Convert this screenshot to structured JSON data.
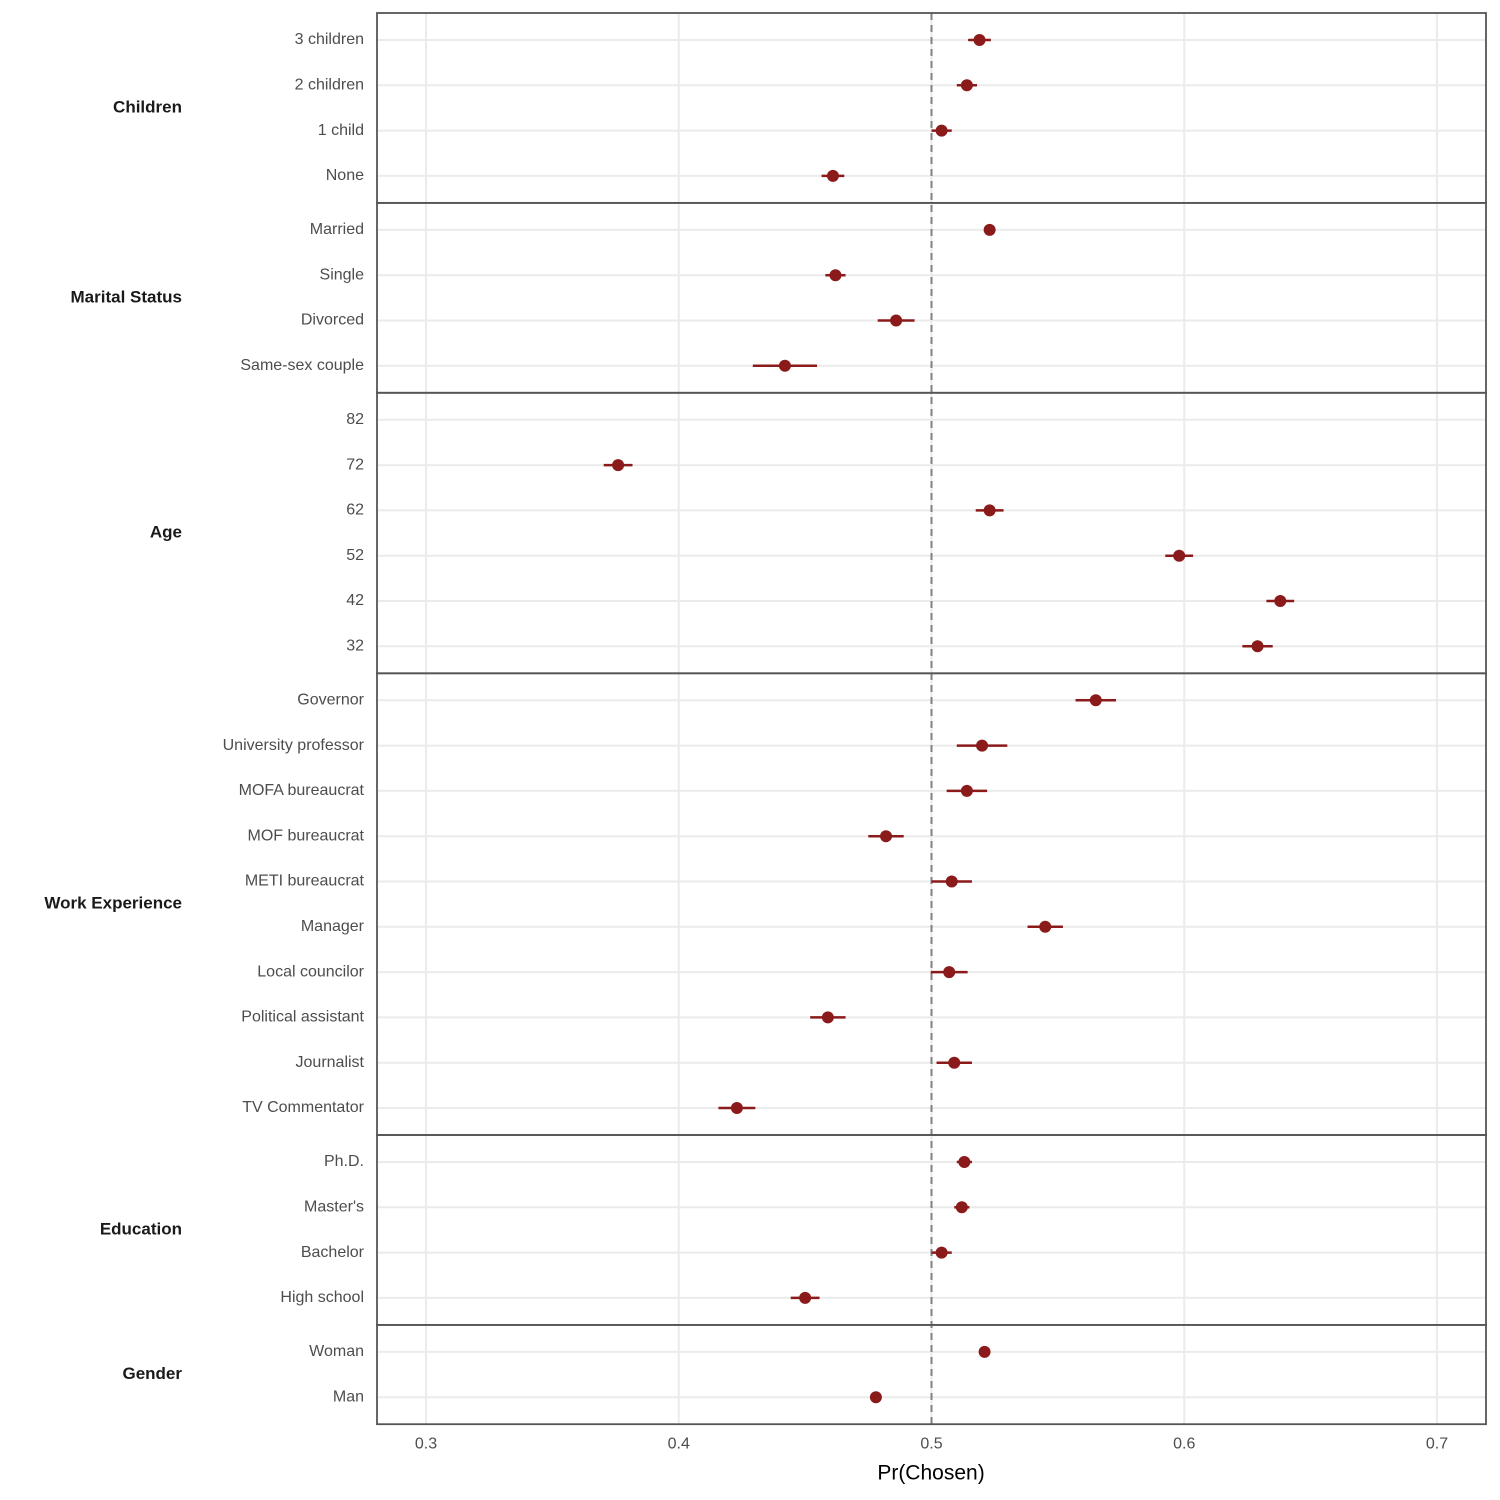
{
  "chart_data": {
    "type": "dot-errorbar",
    "xlabel": "Pr(Chosen)",
    "xlim": [
      0.2806,
      0.7194
    ],
    "xticks": [
      0.3,
      0.4,
      0.5,
      0.6,
      0.7
    ],
    "ref_line": 0.5,
    "color": "#8b1a1a",
    "grid": true,
    "facets": [
      {
        "title": "Children",
        "categories": [
          "3 children",
          "2 children",
          "1 child",
          "None"
        ],
        "values": [
          0.519,
          0.514,
          0.504,
          0.461
        ],
        "errors": [
          0.0045,
          0.004,
          0.004,
          0.0045
        ]
      },
      {
        "title": "Marital Status",
        "categories": [
          "Married",
          "Single",
          "Divorced",
          "Same-sex couple"
        ],
        "values": [
          0.523,
          0.462,
          0.486,
          0.442
        ],
        "errors": [
          0.001,
          0.004,
          0.0073,
          0.0127
        ]
      },
      {
        "title": "Age",
        "categories": [
          "82",
          "72",
          "62",
          "52",
          "42",
          "32"
        ],
        "values": [
          null,
          0.376,
          0.523,
          0.598,
          0.638,
          0.629
        ],
        "errors": [
          null,
          0.0057,
          0.0055,
          0.0055,
          0.0055,
          0.006
        ]
      },
      {
        "title": "Work Experience",
        "categories": [
          "Governor",
          "University professor",
          "MOFA bureaucrat",
          "MOF bureaucrat",
          "METI bureaucrat",
          "Manager",
          "Local councilor",
          "Political assistant",
          "Journalist",
          "TV Commentator"
        ],
        "values": [
          0.565,
          0.52,
          0.514,
          0.482,
          0.508,
          0.545,
          0.507,
          0.459,
          0.509,
          0.423
        ],
        "errors": [
          0.008,
          0.01,
          0.008,
          0.007,
          0.008,
          0.007,
          0.0073,
          0.007,
          0.007,
          0.0073
        ]
      },
      {
        "title": "Education",
        "categories": [
          "Ph.D.",
          "Master's",
          "Bachelor",
          "High school"
        ],
        "values": [
          0.513,
          0.512,
          0.504,
          0.45
        ],
        "errors": [
          0.003,
          0.003,
          0.004,
          0.0057
        ]
      },
      {
        "title": "Gender",
        "categories": [
          "Woman",
          "Man"
        ],
        "values": [
          0.521,
          0.478
        ],
        "errors": [
          0.001,
          0.001
        ]
      }
    ]
  }
}
